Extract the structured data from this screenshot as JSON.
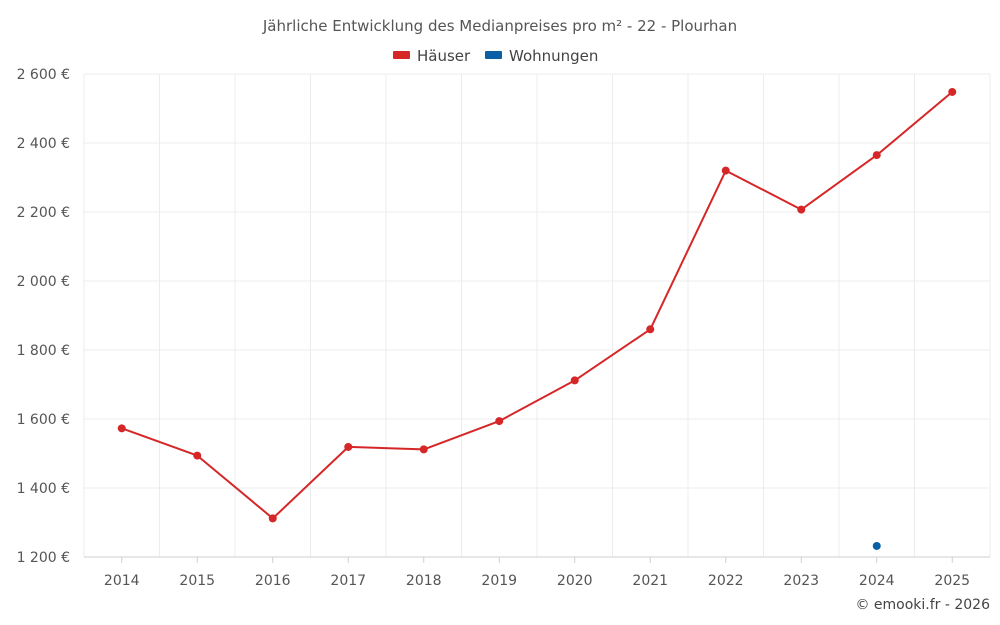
{
  "chart_data": {
    "type": "line",
    "title": "Jährliche Entwicklung des Medianpreises pro m² - 22 - Plourhan",
    "categories": [
      "2014",
      "2015",
      "2016",
      "2017",
      "2018",
      "2019",
      "2020",
      "2021",
      "2022",
      "2023",
      "2024",
      "2025"
    ],
    "series": [
      {
        "name": "Häuser",
        "color": "#d62728",
        "values": [
          1573,
          1494,
          1312,
          1519,
          1512,
          1594,
          1712,
          1860,
          2320,
          2207,
          2365,
          2548
        ]
      },
      {
        "name": "Wohnungen",
        "color": "#0b5fa5",
        "values": [
          null,
          null,
          null,
          null,
          null,
          null,
          null,
          null,
          null,
          null,
          1232,
          null
        ]
      }
    ],
    "yticks": [
      "1 200 €",
      "1 400 €",
      "1 600 €",
      "1 800 €",
      "2 000 €",
      "2 200 €",
      "2 400 €",
      "2 600 €"
    ],
    "ytick_values": [
      1200,
      1400,
      1600,
      1800,
      2000,
      2200,
      2400,
      2600
    ],
    "ylim": [
      1200,
      2600
    ],
    "xlabel": "",
    "ylabel": "",
    "grid": true,
    "legend_position": "top-center",
    "credit": "© emooki.fr - 2026"
  }
}
